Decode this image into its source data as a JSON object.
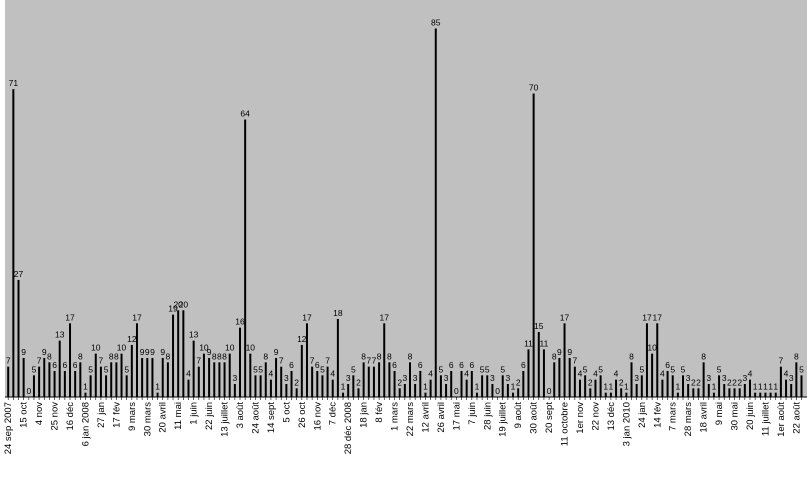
{
  "chart_data": {
    "type": "bar",
    "title": "",
    "xlabel": "",
    "ylabel": "",
    "ylim": [
      0,
      90
    ],
    "grid": false,
    "legend": "none",
    "colors": {
      "plot_background": "#c0c0c0",
      "bar": "#000000",
      "text": "#000000",
      "page": "#ffffff"
    },
    "values": [
      7,
      71,
      27,
      9,
      0,
      5,
      7,
      9,
      8,
      6,
      13,
      6,
      17,
      6,
      8,
      1,
      5,
      10,
      7,
      5,
      8,
      8,
      10,
      5,
      12,
      17,
      9,
      9,
      9,
      1,
      9,
      8,
      19,
      20,
      20,
      4,
      13,
      7,
      10,
      9,
      8,
      8,
      8,
      10,
      3,
      16,
      64,
      10,
      5,
      5,
      8,
      4,
      9,
      7,
      3,
      6,
      2,
      12,
      17,
      7,
      6,
      5,
      7,
      4,
      18,
      1,
      3,
      5,
      2,
      8,
      7,
      7,
      8,
      17,
      8,
      6,
      2,
      3,
      8,
      3,
      6,
      1,
      4,
      85,
      5,
      3,
      6,
      0,
      6,
      4,
      6,
      1,
      5,
      5,
      3,
      0,
      5,
      3,
      1,
      2,
      6,
      11,
      70,
      15,
      11,
      0,
      8,
      9,
      17,
      9,
      7,
      4,
      5,
      2,
      4,
      5,
      1,
      1,
      4,
      2,
      1,
      8,
      3,
      5,
      17,
      10,
      17,
      4,
      6,
      5,
      1,
      5,
      3,
      2,
      2,
      8,
      3,
      1,
      5,
      3,
      2,
      2,
      2,
      3,
      4,
      1,
      1,
      1,
      1,
      1,
      7,
      4,
      3,
      8,
      5
    ],
    "labeled_ticks": [
      {
        "index": 0,
        "label": "24 sep 2007"
      },
      {
        "index": 3,
        "label": "15 oct"
      },
      {
        "index": 6,
        "label": "4 nov"
      },
      {
        "index": 9,
        "label": "25 nov"
      },
      {
        "index": 12,
        "label": "16 déc"
      },
      {
        "index": 15,
        "label": "6 jan 2008"
      },
      {
        "index": 18,
        "label": "27 jan"
      },
      {
        "index": 21,
        "label": "17 fév"
      },
      {
        "index": 24,
        "label": "9 mars"
      },
      {
        "index": 27,
        "label": "30 mars"
      },
      {
        "index": 30,
        "label": "20 avril"
      },
      {
        "index": 33,
        "label": "11 mai"
      },
      {
        "index": 36,
        "label": "1 juin"
      },
      {
        "index": 39,
        "label": "22 juin"
      },
      {
        "index": 42,
        "label": "13 juillet"
      },
      {
        "index": 45,
        "label": "3 août"
      },
      {
        "index": 48,
        "label": "24 août"
      },
      {
        "index": 51,
        "label": "14 sept"
      },
      {
        "index": 54,
        "label": "5 oct"
      },
      {
        "index": 57,
        "label": "26 oct"
      },
      {
        "index": 60,
        "label": "16 nov"
      },
      {
        "index": 63,
        "label": "7 déc"
      },
      {
        "index": 66,
        "label": "28 déc 2008"
      },
      {
        "index": 69,
        "label": "18 jan"
      },
      {
        "index": 72,
        "label": "8 fév"
      },
      {
        "index": 75,
        "label": "1 mars"
      },
      {
        "index": 78,
        "label": "22 mars"
      },
      {
        "index": 81,
        "label": "12 avril"
      },
      {
        "index": 84,
        "label": "26 avril"
      },
      {
        "index": 87,
        "label": "17 mai"
      },
      {
        "index": 90,
        "label": "7 juin"
      },
      {
        "index": 93,
        "label": "28 juin"
      },
      {
        "index": 96,
        "label": "19 juillet"
      },
      {
        "index": 99,
        "label": "9 août"
      },
      {
        "index": 102,
        "label": "30 août"
      },
      {
        "index": 105,
        "label": "20 sept"
      },
      {
        "index": 108,
        "label": "11 octobre"
      },
      {
        "index": 111,
        "label": "1er nov"
      },
      {
        "index": 114,
        "label": "22 nov"
      },
      {
        "index": 117,
        "label": "13 déc"
      },
      {
        "index": 120,
        "label": "3 jan 2010"
      },
      {
        "index": 123,
        "label": "24 jan"
      },
      {
        "index": 126,
        "label": "14 fév"
      },
      {
        "index": 129,
        "label": "7 mars"
      },
      {
        "index": 132,
        "label": "28 mars"
      },
      {
        "index": 135,
        "label": "18 avril"
      },
      {
        "index": 138,
        "label": "9 mai"
      },
      {
        "index": 141,
        "label": "30 mai"
      },
      {
        "index": 144,
        "label": "20 juin"
      },
      {
        "index": 147,
        "label": "11 juillet"
      },
      {
        "index": 150,
        "label": "1er août"
      },
      {
        "index": 153,
        "label": "22 août"
      }
    ]
  }
}
